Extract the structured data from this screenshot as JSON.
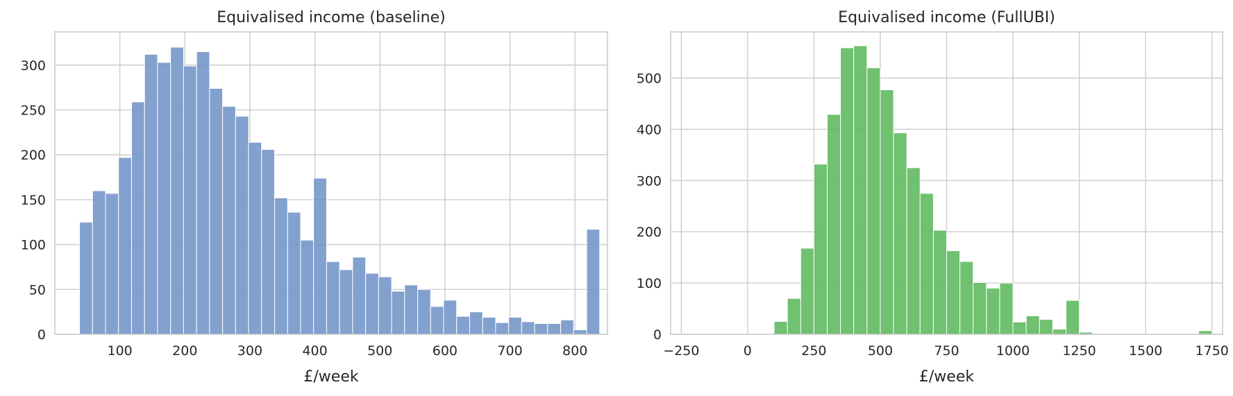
{
  "chart_data": [
    {
      "type": "bar",
      "title": "Equivalised income (baseline)",
      "xlabel": "£/week",
      "ylabel": "",
      "xlim": [
        0,
        850
      ],
      "ylim": [
        0,
        337
      ],
      "xticks": [
        100,
        200,
        300,
        400,
        500,
        600,
        700,
        800
      ],
      "yticks": [
        0,
        50,
        100,
        150,
        200,
        250,
        300
      ],
      "grid": true,
      "color": "#7294c7",
      "bin_start": 38,
      "bin_width": 20,
      "values": [
        125,
        160,
        157,
        197,
        259,
        312,
        303,
        320,
        299,
        315,
        274,
        254,
        243,
        214,
        206,
        152,
        136,
        105,
        174,
        81,
        72,
        86,
        68,
        64,
        48,
        55,
        50,
        31,
        38,
        20,
        25,
        19,
        13,
        19,
        14,
        12,
        12,
        16,
        5,
        117
      ]
    },
    {
      "type": "bar",
      "title": "Equivalised income (FullUBI)",
      "xlabel": "£/week",
      "ylabel": "",
      "xlim": [
        -290,
        1790
      ],
      "ylim": [
        0,
        590
      ],
      "xticks": [
        -250,
        0,
        250,
        500,
        750,
        1000,
        1250,
        1500,
        1750
      ],
      "yticks": [
        0,
        100,
        200,
        300,
        400,
        500
      ],
      "grid": true,
      "color": "#5cb85c",
      "bin_start": -250,
      "bin_width": 50,
      "values": [
        1,
        1,
        1,
        1,
        1,
        1,
        1,
        25,
        70,
        168,
        332,
        429,
        559,
        563,
        520,
        477,
        393,
        325,
        275,
        203,
        163,
        142,
        101,
        90,
        100,
        24,
        36,
        29,
        10,
        66,
        4,
        1,
        1,
        1,
        1,
        1,
        1,
        1,
        1,
        7
      ]
    }
  ]
}
